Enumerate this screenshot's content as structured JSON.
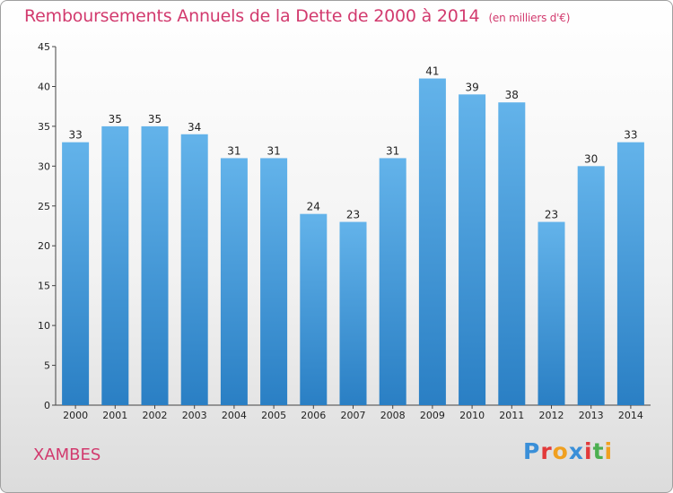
{
  "chart_data": {
    "type": "bar",
    "title": "Remboursements Annuels de la Dette de 2000 à 2014",
    "unit_label": "(en milliers d'€)",
    "categories": [
      "2000",
      "2001",
      "2002",
      "2003",
      "2004",
      "2005",
      "2006",
      "2007",
      "2008",
      "2009",
      "2010",
      "2011",
      "2012",
      "2013",
      "2014"
    ],
    "values": [
      33,
      35,
      35,
      34,
      31,
      31,
      24,
      23,
      31,
      41,
      39,
      38,
      23,
      30,
      33
    ],
    "ylim": [
      0,
      45
    ],
    "yticks": [
      0,
      5,
      10,
      15,
      20,
      25,
      30,
      35,
      40,
      45
    ],
    "xlabel": "",
    "ylabel": "",
    "grid": false
  },
  "commune": "XAMBES",
  "logo": {
    "letters": [
      "P",
      "r",
      "o",
      "x",
      "i",
      "t",
      "i"
    ],
    "colors": [
      "#3a8fd8",
      "#e23a3a",
      "#f0a020",
      "#3a8fd8",
      "#e23a3a",
      "#4caf50",
      "#f0a020"
    ]
  },
  "colors": {
    "bar_top": "#63b3ea",
    "bar_bottom": "#2a7fc4",
    "accent": "#d23a6e"
  }
}
